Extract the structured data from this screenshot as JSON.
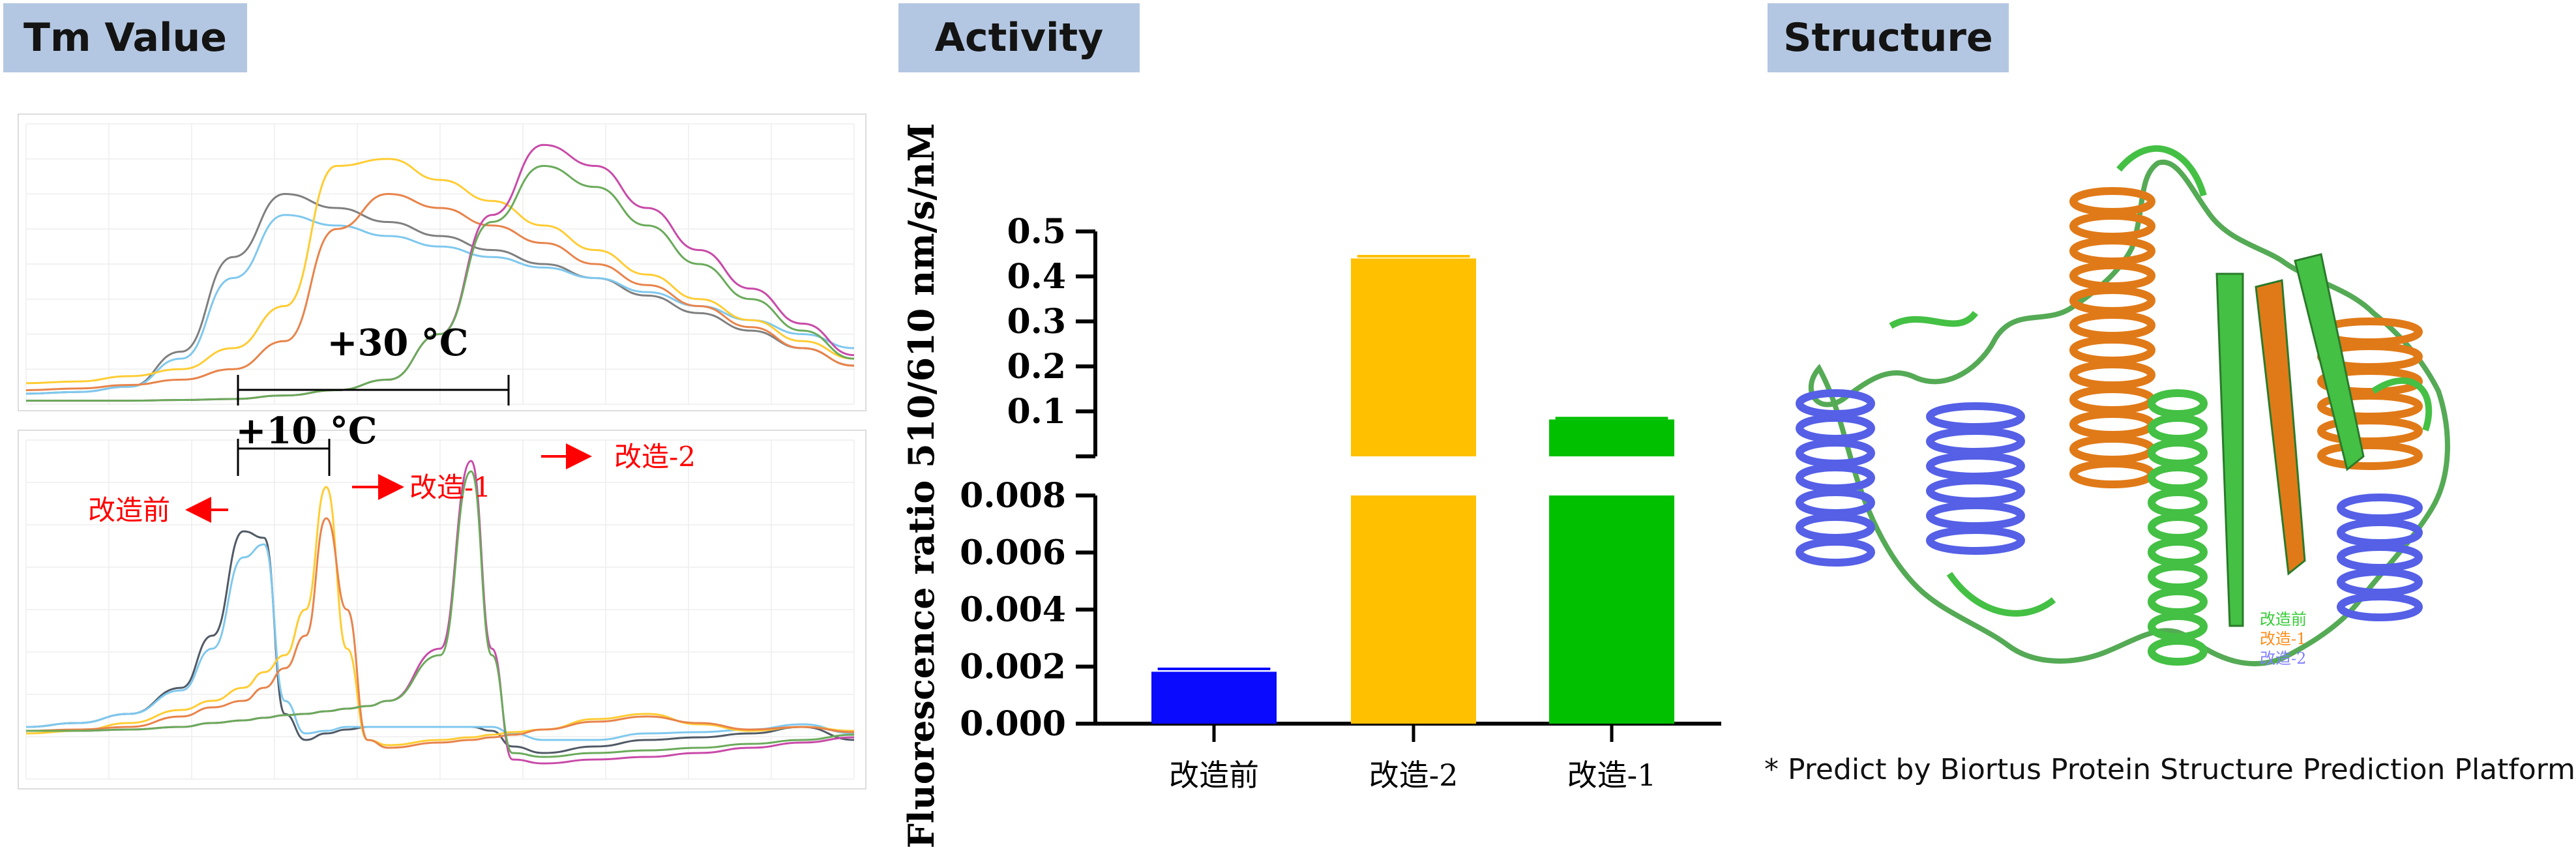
{
  "panels": {
    "tm": {
      "heading": "Tm Value"
    },
    "activity": {
      "heading": "Activity"
    },
    "structure": {
      "heading": "Structure"
    }
  },
  "tm_annotations": {
    "shift_large": "+30 °C",
    "shift_small": "+10 °C",
    "arrow_before": "改造前",
    "arrow_1": "改造-1",
    "arrow_2": "改造-2"
  },
  "structure_legend": [
    {
      "label": "改造前",
      "color": "#33cc33"
    },
    {
      "label": "改造-1",
      "color": "#ff8c1a"
    },
    {
      "label": "改造-2",
      "color": "#8080ff"
    }
  ],
  "footnote": "* Predict by Biortus Protein Structure Prediction Platform",
  "chart_data": [
    {
      "type": "line",
      "panel": "tm-fluorescence",
      "x": [
        20,
        25,
        30,
        35,
        40,
        45,
        50,
        55,
        60,
        65,
        70,
        75,
        80,
        85,
        90,
        95,
        100
      ],
      "series": [
        {
          "color": "#7f7f7f",
          "values": [
            0.3,
            0.35,
            0.5,
            1.5,
            4.2,
            6.0,
            5.6,
            5.2,
            4.8,
            4.4,
            4.0,
            3.6,
            3.1,
            2.6,
            2.1,
            1.6,
            1.1
          ]
        },
        {
          "color": "#7fc8ee",
          "values": [
            0.3,
            0.35,
            0.5,
            1.3,
            3.6,
            5.4,
            5.1,
            4.8,
            4.5,
            4.2,
            3.9,
            3.6,
            3.2,
            2.8,
            2.4,
            2.0,
            1.6
          ]
        },
        {
          "color": "#ffcc33",
          "values": [
            0.6,
            0.65,
            0.8,
            1.0,
            1.6,
            2.8,
            6.8,
            7.0,
            6.4,
            5.8,
            5.1,
            4.4,
            3.7,
            3.0,
            2.4,
            1.8,
            1.3
          ]
        },
        {
          "color": "#e8834a",
          "values": [
            0.4,
            0.45,
            0.55,
            0.7,
            1.0,
            1.8,
            5.0,
            6.0,
            5.6,
            5.1,
            4.6,
            4.0,
            3.4,
            2.8,
            2.2,
            1.6,
            1.1
          ]
        },
        {
          "color": "#c84aa8",
          "values": [
            0.1,
            0.1,
            0.1,
            0.12,
            0.15,
            0.25,
            0.4,
            0.7,
            2.0,
            5.4,
            7.4,
            6.8,
            5.6,
            4.4,
            3.3,
            2.3,
            1.4
          ]
        },
        {
          "color": "#6aaa5a",
          "values": [
            0.1,
            0.1,
            0.1,
            0.12,
            0.15,
            0.25,
            0.4,
            0.7,
            2.0,
            5.2,
            6.8,
            6.2,
            5.1,
            4.0,
            3.0,
            2.1,
            1.3
          ]
        }
      ],
      "xlim": [
        20,
        100
      ],
      "ylim": [
        0,
        8
      ]
    },
    {
      "type": "line",
      "panel": "tm-derivative",
      "x": [
        20,
        25,
        30,
        35,
        38,
        41,
        43,
        45,
        47,
        49,
        51,
        53,
        55,
        60,
        63,
        65,
        67,
        70,
        75,
        80,
        85,
        90,
        95,
        100
      ],
      "series": [
        {
          "color": "#505a66",
          "values": [
            0,
            0.3,
            1.0,
            3.0,
            7.0,
            15.0,
            14.5,
            1.0,
            -1.0,
            -0.5,
            -0.2,
            0,
            0,
            0,
            0,
            -0.3,
            -1.5,
            -2.0,
            -1.5,
            -1.0,
            -0.8,
            -0.5,
            0,
            -1
          ]
        },
        {
          "color": "#7fc8ee",
          "values": [
            0,
            0.3,
            1.0,
            2.8,
            6.0,
            13.0,
            14.0,
            2.0,
            -0.5,
            -0.3,
            0,
            0,
            0,
            0,
            0,
            0,
            -0.5,
            -1.0,
            -1.0,
            -0.5,
            -0.4,
            -0.2,
            0.2,
            -0.5
          ]
        },
        {
          "color": "#ffcc33",
          "values": [
            -0.5,
            -0.3,
            0.3,
            1.3,
            2.0,
            3.0,
            4.2,
            5.5,
            9.0,
            18.4,
            6.0,
            -1.0,
            -1.4,
            -1.0,
            -0.8,
            -0.6,
            -0.4,
            -0.2,
            0.6,
            1.0,
            0.2,
            -0.3,
            0,
            -0.3
          ]
        },
        {
          "color": "#e8834a",
          "values": [
            -0.3,
            -0.2,
            0,
            0.8,
            1.5,
            2.0,
            3.0,
            4.5,
            7.0,
            16.0,
            9.0,
            -1.0,
            -1.6,
            -1.2,
            -1.0,
            -0.8,
            -0.6,
            -0.2,
            0.4,
            0.8,
            0.3,
            -0.2,
            0,
            -0.4
          ]
        },
        {
          "color": "#c84aa8",
          "values": [
            -0.3,
            -0.3,
            -0.2,
            0,
            0.3,
            0.5,
            0.7,
            0.9,
            1.0,
            1.2,
            1.4,
            1.6,
            2.0,
            6.0,
            20.4,
            6.0,
            -2.5,
            -2.8,
            -2.5,
            -2.3,
            -2.0,
            -1.6,
            -1.2,
            -0.8
          ]
        },
        {
          "color": "#6aaa5a",
          "values": [
            -0.3,
            -0.3,
            -0.2,
            0,
            0.3,
            0.5,
            0.7,
            0.9,
            1.0,
            1.2,
            1.4,
            1.6,
            2.0,
            5.5,
            19.6,
            5.5,
            -2.0,
            -2.3,
            -2.0,
            -1.8,
            -1.6,
            -1.3,
            -1.0,
            -0.6
          ]
        }
      ],
      "xlim": [
        20,
        100
      ],
      "ylim": [
        -4,
        22
      ]
    },
    {
      "type": "bar",
      "panel": "activity",
      "categories": [
        "改造前",
        "改造-2",
        "改造-1"
      ],
      "values": [
        0.00182,
        0.44,
        0.082
      ],
      "errors": [
        0.0001,
        0.005,
        0.003
      ],
      "colors": [
        "#0a0aff",
        "#ffc000",
        "#00c000"
      ],
      "ylabel": "Fluorescence ratio 510/610 nm/s/nM",
      "axis_break": {
        "lower_range": [
          0,
          0.008
        ],
        "upper_range": [
          0,
          0.5
        ]
      },
      "lower_ticks": [
        "0.000",
        "0.002",
        "0.004",
        "0.006",
        "0.008"
      ],
      "upper_ticks": [
        "0.1",
        "0.2",
        "0.3",
        "0.4",
        "0.5"
      ]
    }
  ]
}
